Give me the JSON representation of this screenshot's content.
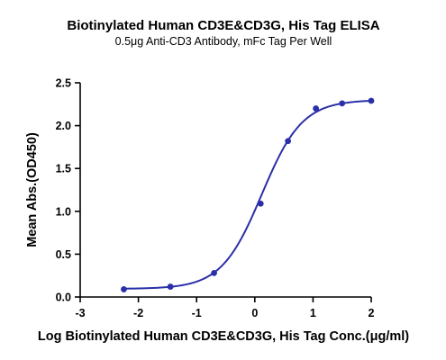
{
  "chart_data": {
    "type": "scatter",
    "title": "Biotinylated Human CD3E&CD3G, His Tag ELISA",
    "subtitle": "0.5μg Anti-CD3 Antibody, mFc Tag Per Well",
    "xlabel": "Log Biotinylated Human CD3E&CD3G, His Tag Conc.(μg/ml)",
    "ylabel": "Mean Abs.(OD450)",
    "xlim": [
      -3,
      2
    ],
    "ylim": [
      0,
      2.5
    ],
    "x_ticks": [
      "-3",
      "-2",
      "-1",
      "0",
      "1",
      "2"
    ],
    "y_ticks": [
      "0.0",
      "0.5",
      "1.0",
      "1.5",
      "2.0",
      "2.5"
    ],
    "grid": false,
    "legend": "none",
    "series": [
      {
        "color": "#2b2fa8",
        "points": [
          {
            "x": -2.25,
            "y": 0.09
          },
          {
            "x": -1.45,
            "y": 0.12
          },
          {
            "x": -0.7,
            "y": 0.28
          },
          {
            "x": 0.1,
            "y": 1.09
          },
          {
            "x": 0.57,
            "y": 1.82
          },
          {
            "x": 1.05,
            "y": 2.2
          },
          {
            "x": 1.5,
            "y": 2.26
          },
          {
            "x": 2.0,
            "y": 2.29
          }
        ],
        "fit": {
          "bottom": 0.095,
          "top": 2.3,
          "logEC50": 0.12,
          "hill": 1.25
        }
      }
    ]
  }
}
